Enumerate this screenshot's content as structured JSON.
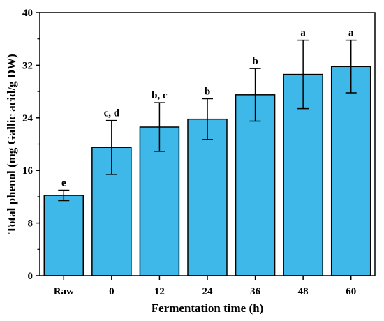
{
  "chart_data": {
    "type": "bar",
    "title": "",
    "xlabel": "Fermentation time (h)",
    "ylabel": "Total phenol (mg Gallic acid/g DW)",
    "categories": [
      "Raw",
      "0",
      "12",
      "24",
      "36",
      "48",
      "60"
    ],
    "values": [
      12.2,
      19.5,
      22.6,
      23.8,
      27.5,
      30.6,
      31.8
    ],
    "errors": [
      0.8,
      4.1,
      3.7,
      3.1,
      4.0,
      5.2,
      4.0
    ],
    "significance": [
      "e",
      "c, d",
      "b, c",
      "b",
      "b",
      "a",
      "a"
    ],
    "ylim": [
      0,
      40
    ],
    "yticks": [
      0,
      8,
      16,
      24,
      32,
      40
    ],
    "grid": false,
    "colors": {
      "bar": "#3db8e8",
      "edge": "#000000",
      "error": "#000000"
    }
  }
}
